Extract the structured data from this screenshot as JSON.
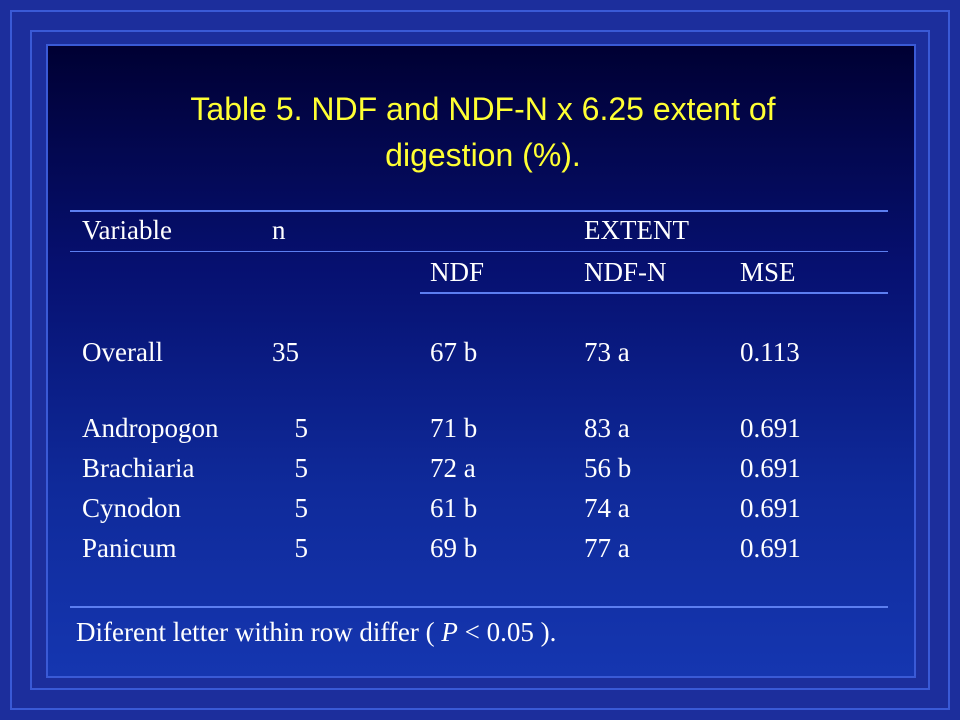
{
  "title": {
    "line1": "Table 5. NDF and NDF-N x 6.25 extent of",
    "line2": "digestion (%)."
  },
  "table": {
    "header": {
      "variable": "Variable",
      "n": "n",
      "group": "EXTENT",
      "ndf": "NDF",
      "ndfn": "NDF-N",
      "mse": "MSE"
    },
    "rows": [
      {
        "variable": "Overall",
        "n": "35",
        "ndf": "67 b",
        "ndfn": "73 a",
        "mse": "0.113"
      },
      {
        "variable": "Andropogon",
        "n": "5",
        "ndf": "71 b",
        "ndfn": "83 a",
        "mse": "0.691"
      },
      {
        "variable": "Brachiaria",
        "n": "5",
        "ndf": "72 a",
        "ndfn": "56 b",
        "mse": "0.691"
      },
      {
        "variable": "Cynodon",
        "n": "5",
        "ndf": "61 b",
        "ndfn": "74 a",
        "mse": "0.691"
      },
      {
        "variable": "Panicum",
        "n": "5",
        "ndf": "69 b",
        "ndfn": "77 a",
        "mse": "0.691"
      }
    ]
  },
  "footnote": {
    "prefix": "Diferent letter within row differ ( ",
    "p": "P",
    "suffix": " < 0.05 )."
  },
  "colors": {
    "title": "#ffff33",
    "rule": "#5c7ef0",
    "text": "#ffffff"
  }
}
